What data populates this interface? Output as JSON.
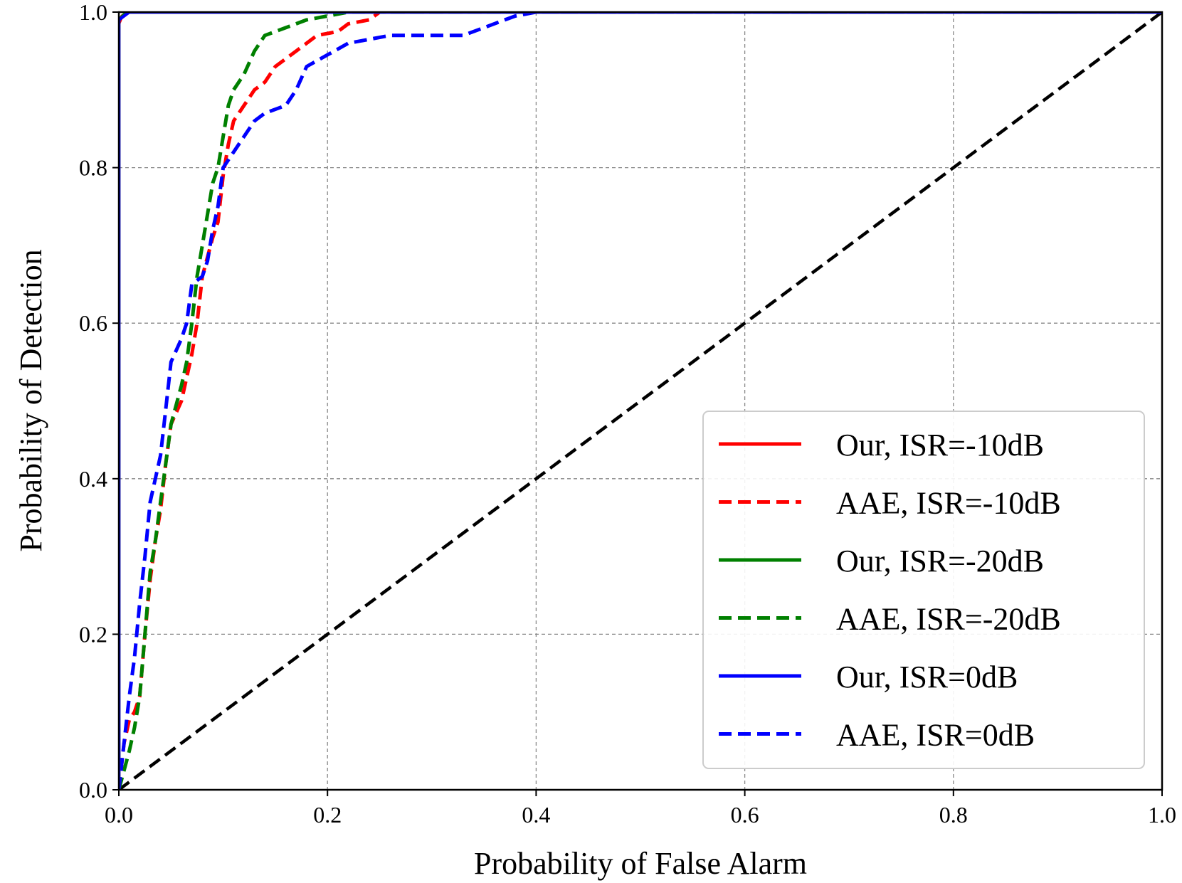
{
  "chart_data": {
    "type": "line",
    "title": "",
    "xlabel": "Probability of False Alarm",
    "ylabel": "Probability of Detection",
    "xlim": [
      0.0,
      1.0
    ],
    "ylim": [
      0.0,
      1.0
    ],
    "x_ticks": [
      "0.0",
      "0.2",
      "0.4",
      "0.6",
      "0.8",
      "1.0"
    ],
    "y_ticks": [
      "0.0",
      "0.2",
      "0.4",
      "0.6",
      "0.8",
      "1.0"
    ],
    "grid": true,
    "legend_position": "lower-right",
    "reference_line": {
      "style": "dashed",
      "color": "#000000",
      "points": [
        [
          0,
          0
        ],
        [
          1,
          1
        ]
      ]
    },
    "series": [
      {
        "name": "Our, ISR=-10dB",
        "color": "#ff0000",
        "style": "solid",
        "points": [
          [
            0,
            0
          ],
          [
            0,
            0.985
          ],
          [
            0.003,
            0.995
          ],
          [
            0.01,
            1.0
          ],
          [
            1.0,
            1.0
          ]
        ]
      },
      {
        "name": "AAE, ISR=-10dB",
        "color": "#ff0000",
        "style": "dashed",
        "points": [
          [
            0,
            0
          ],
          [
            0.005,
            0.06
          ],
          [
            0.01,
            0.09
          ],
          [
            0.015,
            0.1
          ],
          [
            0.02,
            0.12
          ],
          [
            0.025,
            0.2
          ],
          [
            0.03,
            0.27
          ],
          [
            0.035,
            0.32
          ],
          [
            0.04,
            0.36
          ],
          [
            0.045,
            0.42
          ],
          [
            0.05,
            0.47
          ],
          [
            0.06,
            0.5
          ],
          [
            0.065,
            0.53
          ],
          [
            0.07,
            0.56
          ],
          [
            0.075,
            0.6
          ],
          [
            0.08,
            0.66
          ],
          [
            0.09,
            0.71
          ],
          [
            0.095,
            0.73
          ],
          [
            0.1,
            0.79
          ],
          [
            0.105,
            0.83
          ],
          [
            0.11,
            0.86
          ],
          [
            0.12,
            0.88
          ],
          [
            0.13,
            0.9
          ],
          [
            0.14,
            0.91
          ],
          [
            0.15,
            0.93
          ],
          [
            0.17,
            0.95
          ],
          [
            0.19,
            0.97
          ],
          [
            0.21,
            0.975
          ],
          [
            0.22,
            0.985
          ],
          [
            0.24,
            0.99
          ],
          [
            0.25,
            1.0
          ],
          [
            0.28,
            1.0
          ],
          [
            1.0,
            1.0
          ]
        ]
      },
      {
        "name": "Our, ISR=-20dB",
        "color": "#008000",
        "style": "solid",
        "points": [
          [
            0,
            0
          ],
          [
            0,
            0.99
          ],
          [
            0.005,
            0.997
          ],
          [
            0.01,
            1.0
          ],
          [
            1.0,
            1.0
          ]
        ]
      },
      {
        "name": "AAE, ISR=-20dB",
        "color": "#008000",
        "style": "dashed",
        "points": [
          [
            0,
            0
          ],
          [
            0.01,
            0.05
          ],
          [
            0.015,
            0.08
          ],
          [
            0.02,
            0.12
          ],
          [
            0.025,
            0.2
          ],
          [
            0.03,
            0.28
          ],
          [
            0.035,
            0.32
          ],
          [
            0.04,
            0.37
          ],
          [
            0.045,
            0.42
          ],
          [
            0.05,
            0.47
          ],
          [
            0.06,
            0.52
          ],
          [
            0.065,
            0.55
          ],
          [
            0.07,
            0.6
          ],
          [
            0.075,
            0.66
          ],
          [
            0.08,
            0.7
          ],
          [
            0.085,
            0.74
          ],
          [
            0.09,
            0.78
          ],
          [
            0.095,
            0.8
          ],
          [
            0.1,
            0.84
          ],
          [
            0.105,
            0.88
          ],
          [
            0.11,
            0.9
          ],
          [
            0.12,
            0.92
          ],
          [
            0.13,
            0.95
          ],
          [
            0.14,
            0.97
          ],
          [
            0.16,
            0.98
          ],
          [
            0.18,
            0.99
          ],
          [
            0.2,
            0.995
          ],
          [
            0.22,
            1.0
          ],
          [
            1.0,
            1.0
          ]
        ]
      },
      {
        "name": "Our, ISR=0dB",
        "color": "#0000ff",
        "style": "solid",
        "points": [
          [
            0,
            0
          ],
          [
            0,
            0.99
          ],
          [
            0.005,
            0.995
          ],
          [
            0.01,
            1.0
          ],
          [
            1.0,
            1.0
          ]
        ]
      },
      {
        "name": "AAE, ISR=0dB",
        "color": "#0000ff",
        "style": "dashed",
        "points": [
          [
            0,
            0
          ],
          [
            0.005,
            0.06
          ],
          [
            0.01,
            0.12
          ],
          [
            0.015,
            0.17
          ],
          [
            0.02,
            0.24
          ],
          [
            0.025,
            0.3
          ],
          [
            0.03,
            0.37
          ],
          [
            0.035,
            0.4
          ],
          [
            0.04,
            0.43
          ],
          [
            0.045,
            0.49
          ],
          [
            0.05,
            0.55
          ],
          [
            0.06,
            0.58
          ],
          [
            0.065,
            0.6
          ],
          [
            0.07,
            0.65
          ],
          [
            0.08,
            0.66
          ],
          [
            0.085,
            0.68
          ],
          [
            0.09,
            0.72
          ],
          [
            0.095,
            0.75
          ],
          [
            0.1,
            0.8
          ],
          [
            0.11,
            0.82
          ],
          [
            0.12,
            0.84
          ],
          [
            0.13,
            0.86
          ],
          [
            0.14,
            0.87
          ],
          [
            0.16,
            0.88
          ],
          [
            0.17,
            0.9
          ],
          [
            0.18,
            0.93
          ],
          [
            0.2,
            0.945
          ],
          [
            0.22,
            0.96
          ],
          [
            0.24,
            0.965
          ],
          [
            0.26,
            0.97
          ],
          [
            0.3,
            0.97
          ],
          [
            0.33,
            0.97
          ],
          [
            0.35,
            0.98
          ],
          [
            0.37,
            0.99
          ],
          [
            0.38,
            0.995
          ],
          [
            0.4,
            1.0
          ],
          [
            1.0,
            1.0
          ]
        ]
      }
    ]
  }
}
